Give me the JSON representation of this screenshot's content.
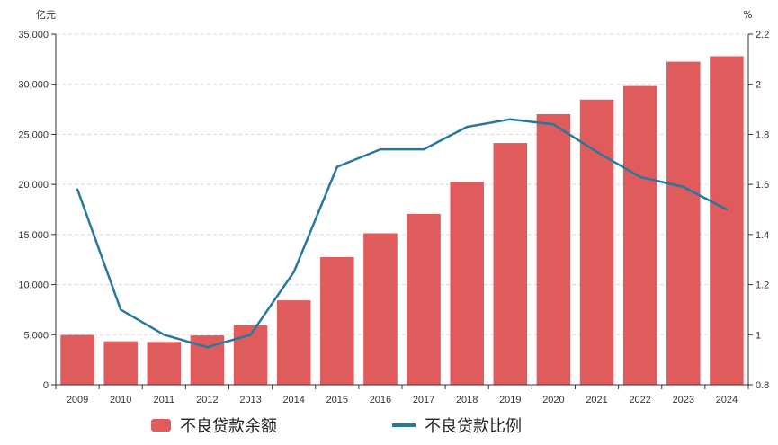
{
  "colors": {
    "bar": "#e05c5c",
    "line": "#2778a0",
    "grid": "#d9d9d9",
    "axis": "#333333"
  },
  "chart_data": {
    "type": "bar",
    "categories": [
      "2009",
      "2010",
      "2011",
      "2012",
      "2013",
      "2014",
      "2015",
      "2016",
      "2017",
      "2018",
      "2019",
      "2020",
      "2021",
      "2022",
      "2023",
      "2024"
    ],
    "series": [
      {
        "name": "不良贷款余额",
        "type": "bar",
        "axis": "left",
        "values": [
          4973,
          4336,
          4279,
          4929,
          5921,
          8426,
          12744,
          15122,
          17057,
          20254,
          24135,
          27015,
          28470,
          29829,
          32256,
          32805
        ]
      },
      {
        "name": "不良贷款比例",
        "type": "line",
        "axis": "right",
        "values": [
          1.58,
          1.1,
          1.0,
          0.95,
          1.0,
          1.25,
          1.67,
          1.74,
          1.74,
          1.83,
          1.86,
          1.84,
          1.73,
          1.63,
          1.59,
          1.5
        ]
      }
    ],
    "y_left": {
      "unit": "亿元",
      "ylim": [
        0,
        35000
      ],
      "ticks": [
        "0",
        "5,000",
        "10,000",
        "15,000",
        "20,000",
        "25,000",
        "30,000",
        "35,000"
      ]
    },
    "y_right": {
      "unit": "%",
      "ylim": [
        0.8,
        2.2
      ],
      "ticks": [
        "0.8",
        "1",
        "1.2",
        "1.4",
        "1.6",
        "1.8",
        "2",
        "2.2"
      ]
    },
    "grid": true,
    "legend_position": "bottom"
  },
  "legend": [
    {
      "label": "不良贷款余额",
      "kind": "bar"
    },
    {
      "label": "不良贷款比例",
      "kind": "line"
    }
  ]
}
